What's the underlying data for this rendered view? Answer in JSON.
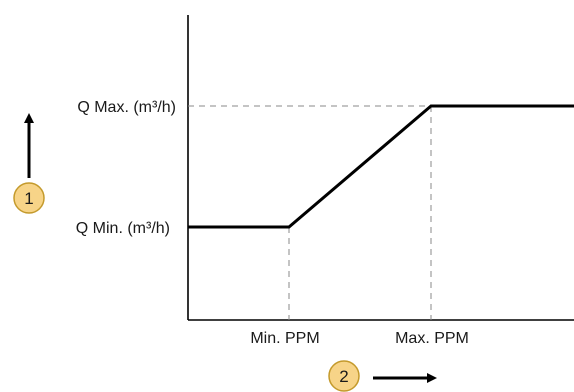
{
  "chart_data": {
    "type": "line",
    "y_levels": [
      {
        "key": "q_max",
        "label": "Q Max. (m³/h)"
      },
      {
        "key": "q_min",
        "label": "Q Min. (m³/h)"
      }
    ],
    "x_levels": [
      {
        "key": "min_ppm",
        "label": "Min. PPM"
      },
      {
        "key": "max_ppm",
        "label": "Max. PPM"
      }
    ],
    "series": [
      {
        "points": [
          {
            "x": "start",
            "y": "q_min"
          },
          {
            "x": "min_ppm",
            "y": "q_min"
          },
          {
            "x": "max_ppm",
            "y": "q_max"
          },
          {
            "x": "end",
            "y": "q_max"
          }
        ]
      }
    ],
    "grid": false,
    "guide_lines": "dashed"
  },
  "markers": {
    "vertical_axis": {
      "number": "1",
      "arrow": "up"
    },
    "horizontal_axis": {
      "number": "2",
      "arrow": "right"
    }
  },
  "colors": {
    "line": "#000000",
    "guide": "#888888",
    "badge_fill": "#f7d488",
    "badge_stroke": "#c49a2c",
    "text": "#1a1a1a"
  }
}
